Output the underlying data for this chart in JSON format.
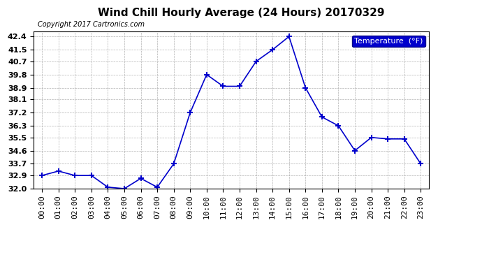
{
  "title": "Wind Chill Hourly Average (24 Hours) 20170329",
  "copyright": "Copyright 2017 Cartronics.com",
  "legend_label": "Temperature  (°F)",
  "legend_bg": "#0000cc",
  "legend_text_color": "#ffffff",
  "x_labels": [
    "00:00",
    "01:00",
    "02:00",
    "03:00",
    "04:00",
    "05:00",
    "06:00",
    "07:00",
    "08:00",
    "09:00",
    "10:00",
    "11:00",
    "12:00",
    "13:00",
    "14:00",
    "15:00",
    "16:00",
    "17:00",
    "18:00",
    "19:00",
    "20:00",
    "21:00",
    "22:00",
    "23:00"
  ],
  "y_values": [
    32.9,
    33.2,
    32.9,
    32.9,
    32.1,
    32.0,
    32.7,
    32.1,
    33.7,
    37.2,
    39.8,
    39.0,
    39.0,
    40.7,
    41.5,
    42.4,
    38.9,
    36.9,
    36.3,
    34.6,
    35.5,
    35.4,
    35.4,
    33.7
  ],
  "line_color": "#0000cc",
  "marker": "+",
  "marker_size": 6,
  "marker_edge_width": 1.5,
  "line_width": 1.2,
  "ylim_min": 32.0,
  "ylim_max": 42.75,
  "yticks": [
    32.0,
    32.9,
    33.7,
    34.6,
    35.5,
    36.3,
    37.2,
    38.1,
    38.9,
    39.8,
    40.7,
    41.5,
    42.4
  ],
  "bg_color": "#ffffff",
  "plot_bg_color": "#ffffff",
  "grid_color": "#aaaaaa",
  "title_fontsize": 11,
  "copyright_fontsize": 7,
  "tick_fontsize": 8,
  "legend_fontsize": 8
}
